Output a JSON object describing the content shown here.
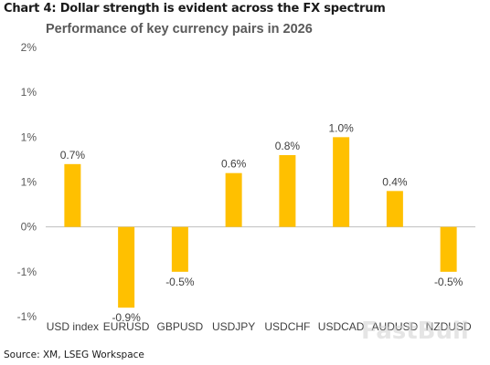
{
  "header": {
    "chart_label": "Chart 4: Dollar strength is evident across the FX spectrum"
  },
  "footer": {
    "source": "Source: XM, LSEG Workspace"
  },
  "watermark": "FastBull",
  "colors": {
    "bar": "#FFC000",
    "baseline": "#BFBFBF",
    "text": "#595959"
  },
  "chart_data": {
    "type": "bar",
    "title": "Performance of key currency pairs in 2026",
    "categories": [
      "USD index",
      "EURUSD",
      "GBPUSD",
      "USDJPY",
      "USDCHF",
      "USDCAD",
      "AUDUSD",
      "NZDUSD"
    ],
    "values": [
      0.7,
      -0.9,
      -0.5,
      0.6,
      0.8,
      1.0,
      0.4,
      -0.5
    ],
    "data_labels": [
      "0.7%",
      "-0.9%",
      "-0.5%",
      "0.6%",
      "0.8%",
      "1.0%",
      "0.4%",
      "-0.5%"
    ],
    "ylim": [
      -1.0,
      2.0
    ],
    "yticks": [
      {
        "value": 2.0,
        "label": "2%"
      },
      {
        "value": 1.5,
        "label": "1%"
      },
      {
        "value": 1.0,
        "label": "1%"
      },
      {
        "value": 0.5,
        "label": "1%"
      },
      {
        "value": 0.0,
        "label": "0%"
      },
      {
        "value": -0.5,
        "label": "-1%"
      },
      {
        "value": -1.0,
        "label": "-1%"
      }
    ],
    "xlabel": "",
    "ylabel": "",
    "grid": false,
    "legend": "none"
  }
}
